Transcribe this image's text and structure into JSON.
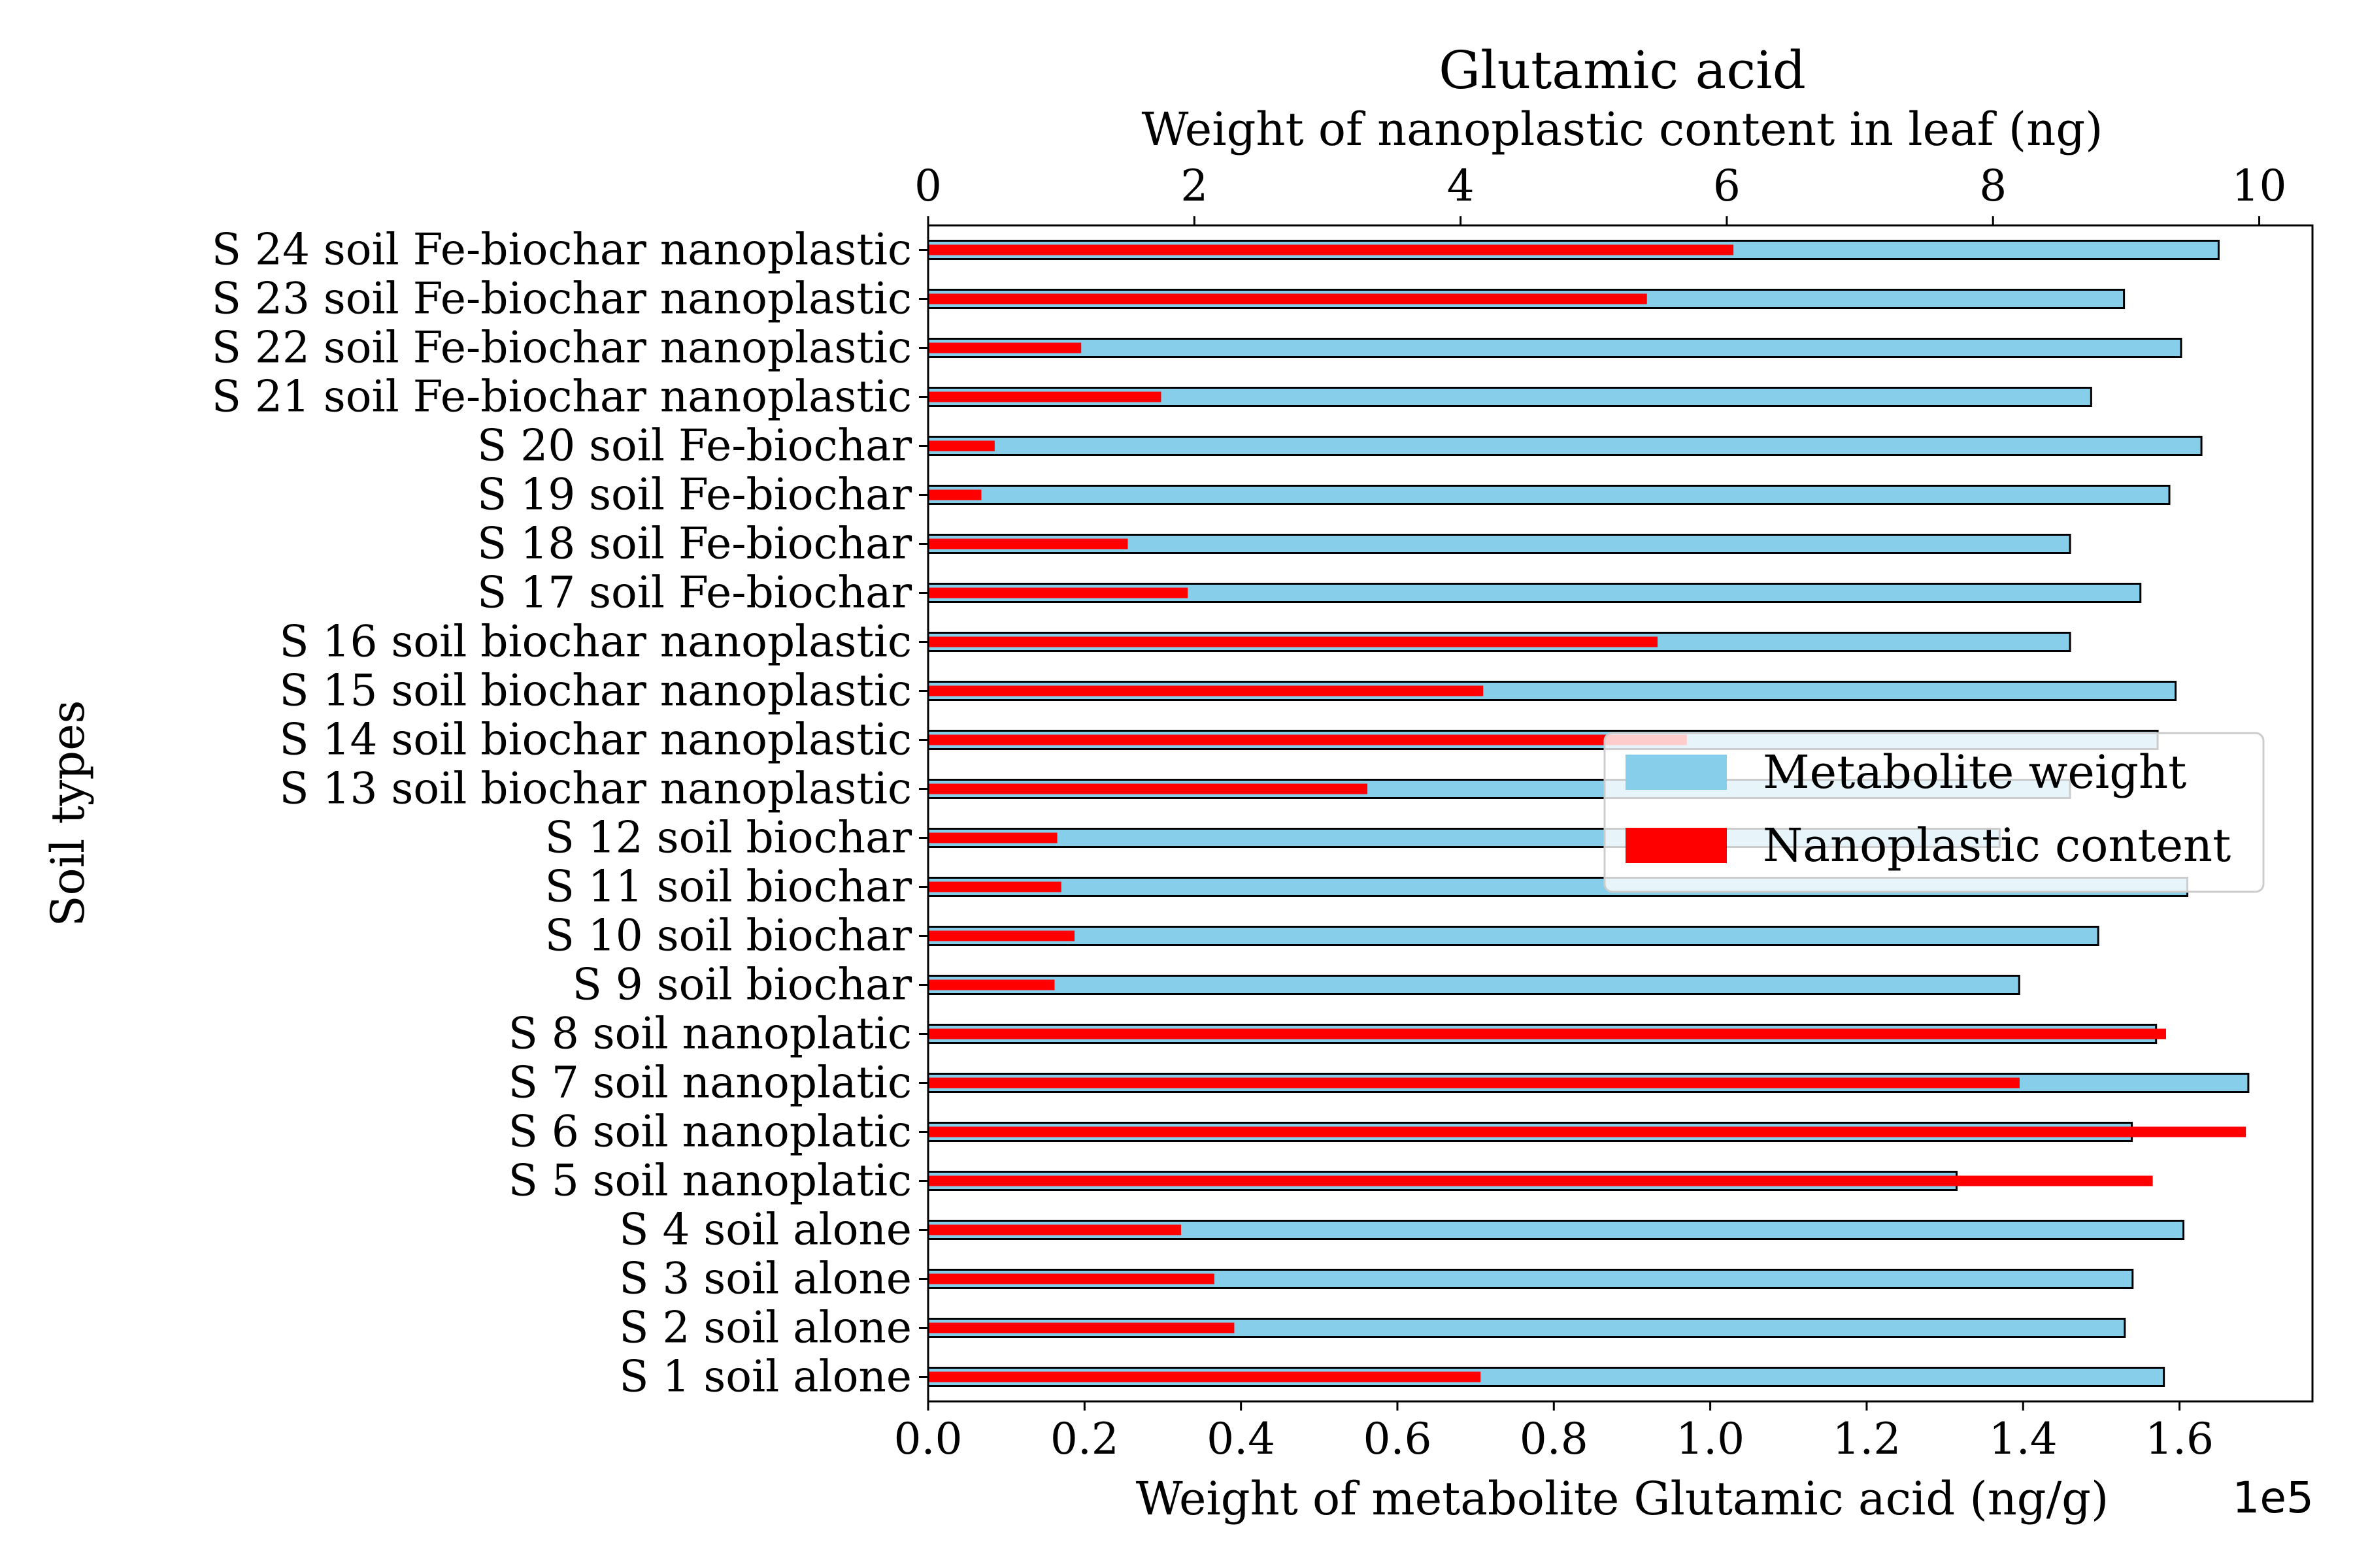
{
  "chart_data": {
    "type": "bar",
    "orientation": "horizontal",
    "title": "Glutamic acid",
    "title_color": "#a52a2a",
    "categories": [
      "S 1 soil alone",
      "S 2 soil alone",
      "S 3 soil alone",
      "S 4 soil alone",
      "S 5 soil nanoplatic",
      "S 6 soil nanoplatic",
      "S 7 soil nanoplatic",
      "S 8 soil nanoplatic",
      "S 9 soil biochar",
      "S 10 soil biochar",
      "S 11 soil biochar",
      "S 12 soil biochar",
      "S 13 soil biochar nanoplastic",
      "S 14 soil biochar nanoplastic",
      "S 15 soil biochar nanoplastic",
      "S 16 soil biochar nanoplastic",
      "S 17 soil Fe-biochar",
      "S 18 soil Fe-biochar",
      "S 19 soil Fe-biochar",
      "S 20 soil Fe-biochar",
      "S 21 soil Fe-biochar nanoplastic",
      "S 22 soil Fe-biochar nanoplastic",
      "S 23 soil Fe-biochar nanoplastic",
      "S 24 soil Fe-biochar nanoplastic"
    ],
    "series": [
      {
        "name": "Metabolite weight",
        "axis": "bottom",
        "color": "#87ceeb",
        "edgecolor": "#000000",
        "values": [
          158000,
          153000,
          154000,
          160500,
          131500,
          153900,
          168800,
          157000,
          139500,
          149600,
          161000,
          137000,
          146000,
          157200,
          159500,
          146000,
          155000,
          146000,
          158700,
          162800,
          148700,
          160200,
          152900,
          165000
        ]
      },
      {
        "name": "Nanoplastic content",
        "axis": "top",
        "color": "#ff0000",
        "values": [
          4.15,
          2.3,
          2.15,
          1.9,
          9.2,
          9.9,
          8.2,
          9.3,
          0.95,
          1.1,
          1.0,
          0.97,
          3.3,
          5.7,
          4.17,
          5.48,
          1.95,
          1.5,
          0.4,
          0.5,
          1.75,
          1.15,
          5.4,
          6.05
        ]
      }
    ],
    "xlabel_bottom": "Weight of metabolite Glutamic acid (ng/g)",
    "xlabel_top": "Weight of nanoplastic content in leaf (ng)",
    "ylabel": "Soil types",
    "xlim_bottom": [
      0,
      177000
    ],
    "xticks_bottom": [
      0.0,
      0.2,
      0.4,
      0.6,
      0.8,
      1.0,
      1.2,
      1.4,
      1.6
    ],
    "xtick_labels_bottom": [
      "0.0",
      "0.2",
      "0.4",
      "0.6",
      "0.8",
      "1.0",
      "1.2",
      "1.4",
      "1.6"
    ],
    "offset_text": "1e5",
    "xlim_top": [
      0,
      10.4
    ],
    "xticks_top": [
      0,
      2,
      4,
      6,
      8,
      10
    ],
    "xtick_labels_top": [
      "0",
      "2",
      "4",
      "6",
      "8",
      "10"
    ],
    "grid": false,
    "legend": {
      "placement": "center-right",
      "entries": [
        "Metabolite weight",
        "Nanoplastic content"
      ]
    }
  }
}
